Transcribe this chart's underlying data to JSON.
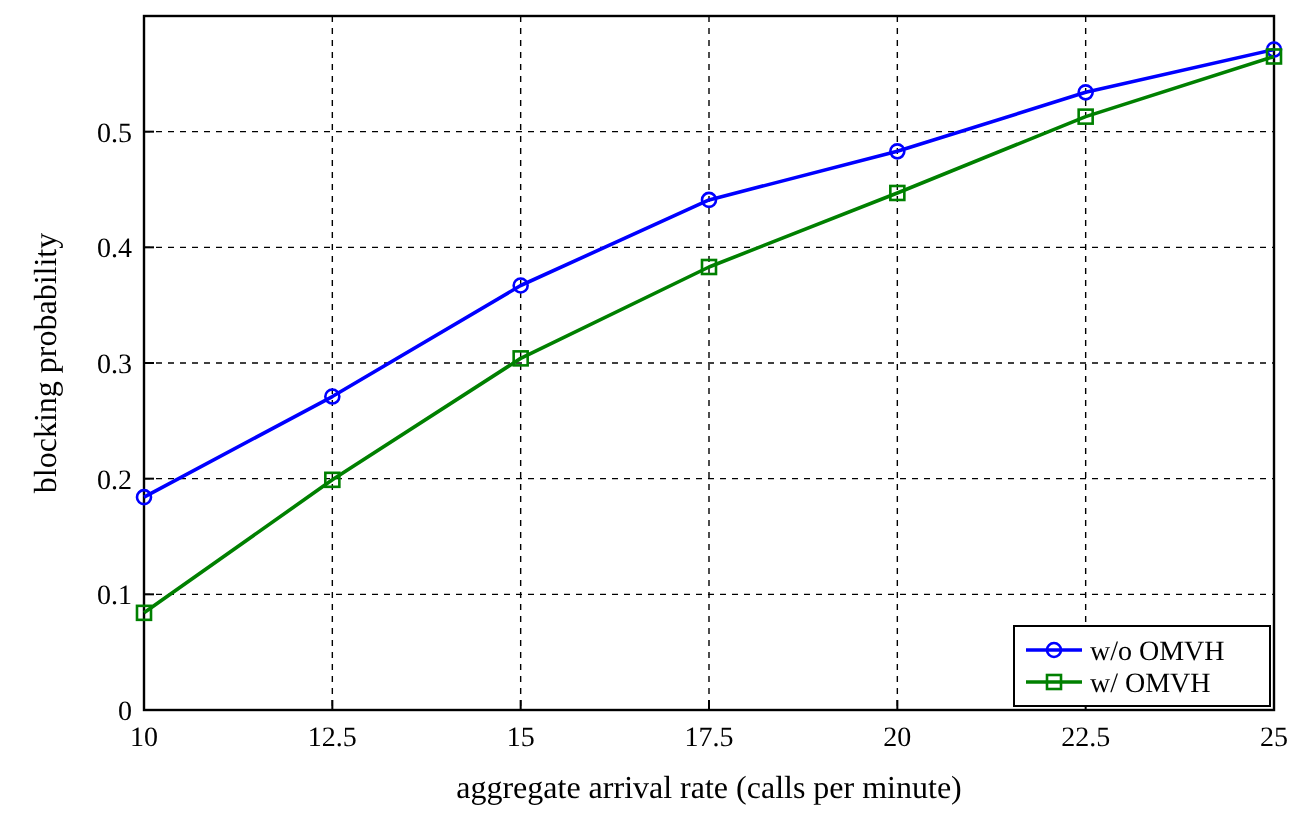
{
  "chart_data": {
    "type": "line",
    "xlabel": "aggregate arrival rate (calls per minute)",
    "ylabel": "blocking probability",
    "x": [
      10,
      12.5,
      15,
      17.5,
      20,
      22.5,
      25
    ],
    "series": [
      {
        "name": "w/o OMVH",
        "color": "#0000ff",
        "marker": "circle",
        "values": [
          0.184,
          0.271,
          0.367,
          0.441,
          0.483,
          0.534,
          0.571
        ]
      },
      {
        "name": "w/ OMVH",
        "color": "#008000",
        "marker": "square",
        "values": [
          0.084,
          0.199,
          0.304,
          0.383,
          0.447,
          0.513,
          0.565
        ]
      }
    ],
    "xlim": [
      10,
      25
    ],
    "xticks": [
      10,
      12.5,
      15,
      17.5,
      20,
      22.5,
      25
    ],
    "ylim": [
      0,
      0.6
    ],
    "yticks": [
      0,
      0.1,
      0.2,
      0.3,
      0.4,
      0.5
    ],
    "grid": true,
    "legend": "bottom right",
    "line_style": "solid"
  }
}
